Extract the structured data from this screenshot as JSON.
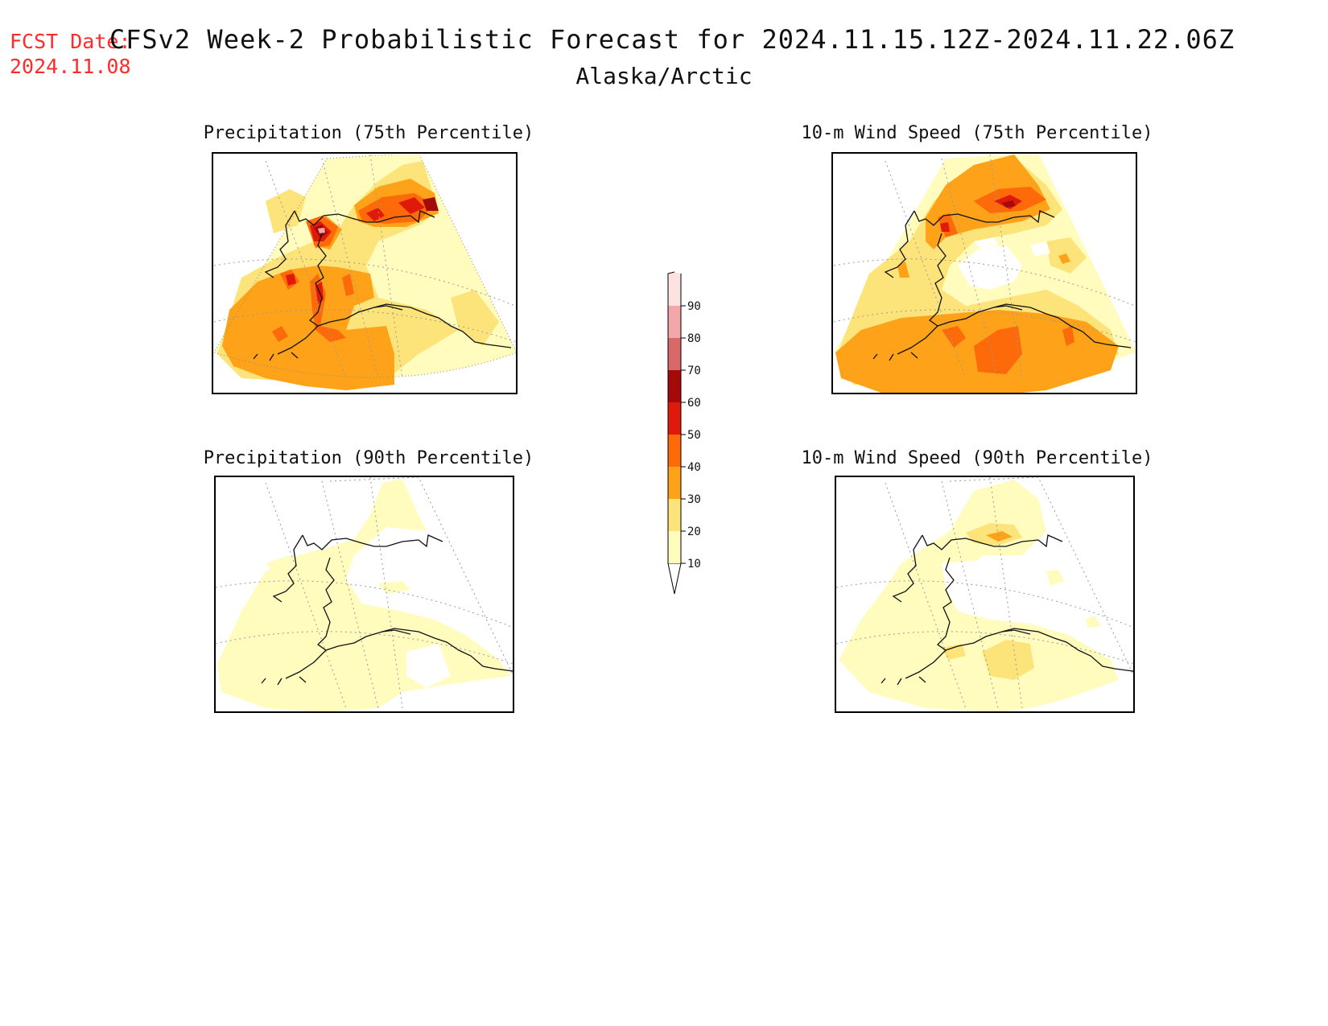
{
  "header": {
    "fcst_label": "FCST Date:",
    "fcst_date": "2024.11.08",
    "title": "CFSv2 Week-2 Probabilistic Forecast for 2024.11.15.12Z-2024.11.22.06Z",
    "subtitle": "Alaska/Arctic"
  },
  "panels": [
    {
      "id": "precip75",
      "title": "Precipitation (75th Percentile)"
    },
    {
      "id": "wind75",
      "title": "10-m Wind Speed (75th Percentile)"
    },
    {
      "id": "precip90",
      "title": "Precipitation (90th Percentile)"
    },
    {
      "id": "wind90",
      "title": "10-m Wind Speed (90th Percentile)"
    }
  ],
  "colorbar": {
    "levels": [
      10,
      20,
      30,
      40,
      50,
      60,
      70,
      80,
      90
    ],
    "tick_labels": [
      "10",
      "20",
      "30",
      "40",
      "50",
      "60",
      "70",
      "80",
      "90"
    ],
    "colors": [
      "#fffcbd",
      "#fde47a",
      "#fea21a",
      "#fd6a0a",
      "#e01a0a",
      "#a40a0a",
      "#d96868",
      "#f2a8a8",
      "#fde2e2"
    ]
  }
}
